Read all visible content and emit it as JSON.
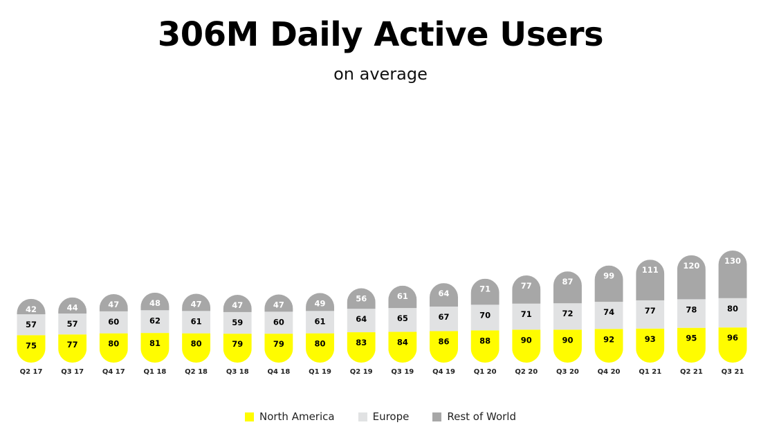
{
  "chart_data": {
    "type": "bar",
    "stacked": true,
    "title": "306M Daily Active Users",
    "subtitle": "on average",
    "categories": [
      "Q2 17",
      "Q3 17",
      "Q4 17",
      "Q1 18",
      "Q2 18",
      "Q3 18",
      "Q4 18",
      "Q1 19",
      "Q2 19",
      "Q3 19",
      "Q4 19",
      "Q1 20",
      "Q2 20",
      "Q3 20",
      "Q4 20",
      "Q1 21",
      "Q2 21",
      "Q3 21"
    ],
    "series": [
      {
        "name": "North America",
        "color": "#FFFC00",
        "label_color": "#000000",
        "values": [
          75,
          77,
          80,
          81,
          80,
          79,
          79,
          80,
          83,
          84,
          86,
          88,
          90,
          90,
          92,
          93,
          95,
          96
        ]
      },
      {
        "name": "Europe",
        "color": "#E1E2E3",
        "label_color": "#000000",
        "values": [
          57,
          57,
          60,
          62,
          61,
          59,
          60,
          61,
          64,
          65,
          67,
          70,
          71,
          72,
          74,
          77,
          78,
          80
        ]
      },
      {
        "name": "Rest of World",
        "color": "#A7A7A7",
        "label_color": "#FFFFFF",
        "values": [
          42,
          44,
          47,
          48,
          47,
          47,
          47,
          49,
          56,
          61,
          64,
          71,
          77,
          87,
          99,
          111,
          120,
          130
        ]
      }
    ],
    "legend_position": "bottom-center",
    "grid": false
  }
}
